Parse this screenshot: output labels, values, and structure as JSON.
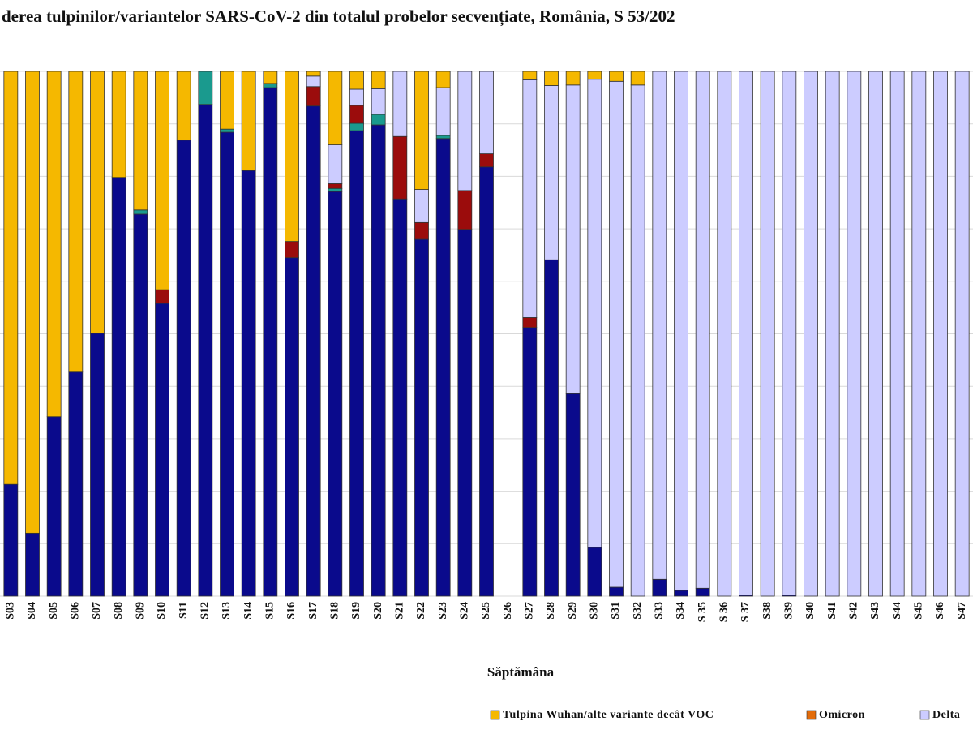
{
  "chart_data": {
    "type": "stacked_bar",
    "title": "derea tulpinilor/variantelor SARS-CoV-2 din totalul probelor secvențiate, România, S 53/202",
    "x_label": "Săptămâna",
    "categories": [
      "S03",
      "S04",
      "S05",
      "S06",
      "S07",
      "S08",
      "S09",
      "S10",
      "S11",
      "S12",
      "S13",
      "S14",
      "S15",
      "S16",
      "S17",
      "S18",
      "S19",
      "S20",
      "S21",
      "S22",
      "S23",
      "S24",
      "S25",
      "S26",
      "S27",
      "S28",
      "S29",
      "S30",
      "S31",
      "S32",
      "S33",
      "S34",
      "S 35",
      "S 36",
      "S 37",
      "S38",
      "S39",
      "S40",
      "S41",
      "S42",
      "S43",
      "S44",
      "S45",
      "S46",
      "S47"
    ],
    "ylim": [
      0,
      100
    ],
    "yticks": [
      0,
      10,
      20,
      30,
      40,
      50,
      60,
      70,
      80,
      90,
      100
    ],
    "grid": true,
    "series": [
      {
        "color": "#0a0a8c",
        "values": [
          21.3,
          12,
          34.2,
          42.7,
          50.1,
          79.8,
          72.8,
          55.8,
          86.9,
          93.7,
          88.4,
          81.1,
          96.9,
          64.5,
          93.4,
          77.1,
          88.7,
          89.8,
          75.7,
          68.0,
          87.2,
          69.9,
          81.8,
          null,
          51.2,
          64.1,
          38.6,
          9.3,
          1.7,
          0,
          3.2,
          1.1,
          1.5,
          0,
          0.2,
          0,
          0.2,
          0,
          0,
          0,
          0,
          0,
          0,
          0,
          0
        ]
      },
      {
        "color": "#1a9a8e",
        "values": [
          0,
          0,
          0,
          0,
          0,
          0,
          0.8,
          0,
          0,
          6.3,
          0.6,
          0,
          0.8,
          0,
          0,
          0.6,
          1.4,
          2.0,
          0,
          0,
          0.6,
          0,
          0,
          null,
          0,
          0,
          0,
          0,
          0,
          0,
          0,
          0,
          0,
          0,
          0,
          0,
          0,
          0,
          0,
          0,
          0,
          0,
          0,
          0,
          0
        ]
      },
      {
        "color": "#9b0c0c",
        "values": [
          0,
          0,
          0,
          0,
          0,
          0,
          0,
          2.6,
          0,
          0,
          0,
          0,
          0,
          3.1,
          3.7,
          0.9,
          3.4,
          0,
          11.9,
          3.2,
          0,
          7.4,
          2.5,
          null,
          1.9,
          0,
          0,
          0,
          0,
          0,
          0,
          0,
          0,
          0,
          0,
          0,
          0,
          0,
          0,
          0,
          0,
          0,
          0,
          0,
          0
        ]
      },
      {
        "name": "Delta",
        "color": "#ccccff",
        "values": [
          0,
          0,
          0,
          0,
          0,
          0,
          0,
          0,
          0,
          0,
          0,
          0,
          0,
          0,
          2.0,
          7.4,
          3.1,
          4.9,
          12.4,
          6.3,
          9.1,
          22.7,
          15.7,
          null,
          45.3,
          33.2,
          58.8,
          89.2,
          96.4,
          97.4,
          96.8,
          98.9,
          98.5,
          100,
          99.8,
          100,
          99.8,
          100,
          100,
          100,
          100,
          100,
          100,
          100,
          100
        ]
      },
      {
        "name": "Omicron",
        "color": "#e36c0a",
        "values": [
          0,
          0,
          0,
          0,
          0,
          0,
          0,
          0,
          0,
          0,
          0,
          0,
          0,
          0,
          0,
          0,
          0,
          0,
          0,
          0,
          0,
          0,
          0,
          null,
          0,
          0,
          0,
          0,
          0,
          0,
          0,
          0,
          0,
          0,
          0,
          0,
          0,
          0,
          0,
          0,
          0,
          0,
          0,
          0,
          0
        ]
      },
      {
        "name": "Tulpina Wuhan/alte variante decât VOC",
        "color": "#f5b800",
        "values": [
          78.7,
          88,
          65.8,
          57.3,
          49.9,
          20.2,
          26.4,
          41.6,
          13.1,
          0,
          11.0,
          18.9,
          2.3,
          32.4,
          0.9,
          14.0,
          3.4,
          3.3,
          0,
          22.5,
          3.1,
          0,
          0,
          null,
          1.6,
          2.7,
          2.6,
          1.5,
          1.9,
          2.6,
          0,
          0,
          0,
          0,
          0,
          0,
          0,
          0,
          0,
          0,
          0,
          0,
          0,
          0,
          0
        ]
      }
    ]
  }
}
